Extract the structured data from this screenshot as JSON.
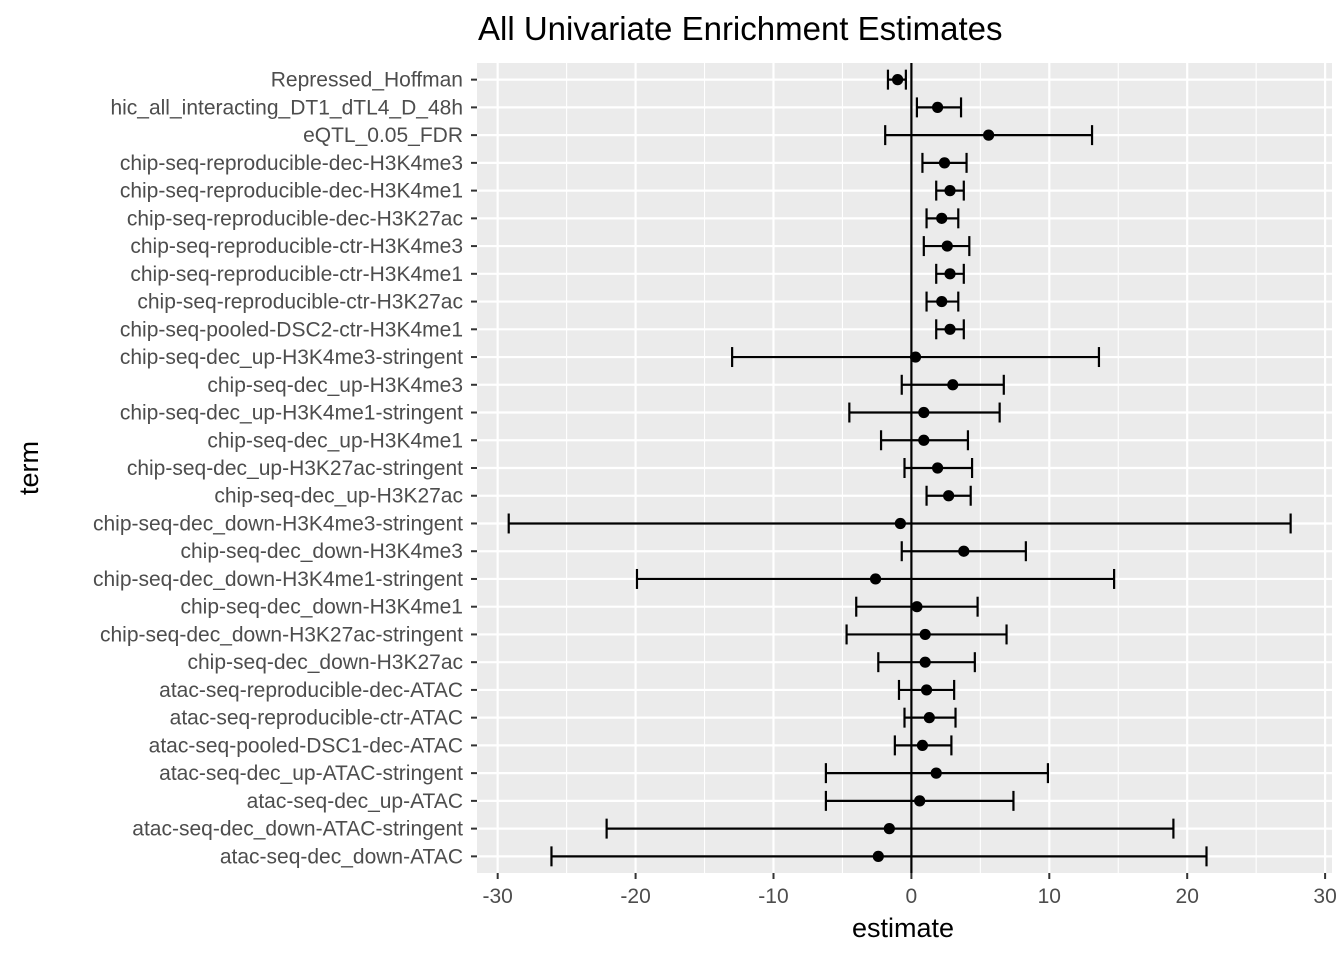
{
  "chart_data": {
    "type": "scatter",
    "subtype": "point-range (estimate with error bars)",
    "title": "All Univariate Enrichment Estimates",
    "xlabel": "estimate",
    "ylabel": "term",
    "xlim": [
      -31.5,
      30.5
    ],
    "xticks": [
      -30,
      -20,
      -10,
      0,
      10,
      20,
      30
    ],
    "xtick_labels": [
      "-30",
      "-20",
      "-10",
      "0",
      "10",
      "20",
      "30"
    ],
    "reference_line_x": 0,
    "grid": true,
    "legend": "none",
    "colors": {
      "panel": "#ebebeb",
      "grid": "#ffffff",
      "marks": "#000000",
      "tick_text": "#4d4d4d"
    },
    "terms": [
      {
        "term": "Repressed_Hoffman",
        "estimate": -1.0,
        "low": -1.7,
        "high": -0.4
      },
      {
        "term": "hic_all_interacting_DT1_dTL4_D_48h",
        "estimate": 1.9,
        "low": 0.4,
        "high": 3.6
      },
      {
        "term": "eQTL_0.05_FDR",
        "estimate": 5.6,
        "low": -1.9,
        "high": 13.1
      },
      {
        "term": "chip-seq-reproducible-dec-H3K4me3",
        "estimate": 2.4,
        "low": 0.8,
        "high": 4.0
      },
      {
        "term": "chip-seq-reproducible-dec-H3K4me1",
        "estimate": 2.8,
        "low": 1.8,
        "high": 3.8
      },
      {
        "term": "chip-seq-reproducible-dec-H3K27ac",
        "estimate": 2.2,
        "low": 1.1,
        "high": 3.4
      },
      {
        "term": "chip-seq-reproducible-ctr-H3K4me3",
        "estimate": 2.6,
        "low": 0.9,
        "high": 4.2
      },
      {
        "term": "chip-seq-reproducible-ctr-H3K4me1",
        "estimate": 2.8,
        "low": 1.8,
        "high": 3.8
      },
      {
        "term": "chip-seq-reproducible-ctr-H3K27ac",
        "estimate": 2.2,
        "low": 1.1,
        "high": 3.4
      },
      {
        "term": "chip-seq-pooled-DSC2-ctr-H3K4me1",
        "estimate": 2.8,
        "low": 1.8,
        "high": 3.8
      },
      {
        "term": "chip-seq-dec_up-H3K4me3-stringent",
        "estimate": 0.3,
        "low": -13.0,
        "high": 13.6
      },
      {
        "term": "chip-seq-dec_up-H3K4me3",
        "estimate": 3.0,
        "low": -0.7,
        "high": 6.7
      },
      {
        "term": "chip-seq-dec_up-H3K4me1-stringent",
        "estimate": 0.9,
        "low": -4.5,
        "high": 6.4
      },
      {
        "term": "chip-seq-dec_up-H3K4me1",
        "estimate": 0.9,
        "low": -2.2,
        "high": 4.1
      },
      {
        "term": "chip-seq-dec_up-H3K27ac-stringent",
        "estimate": 1.9,
        "low": -0.5,
        "high": 4.4
      },
      {
        "term": "chip-seq-dec_up-H3K27ac",
        "estimate": 2.7,
        "low": 1.1,
        "high": 4.3
      },
      {
        "term": "chip-seq-dec_down-H3K4me3-stringent",
        "estimate": -0.8,
        "low": -29.2,
        "high": 27.5
      },
      {
        "term": "chip-seq-dec_down-H3K4me3",
        "estimate": 3.8,
        "low": -0.7,
        "high": 8.3
      },
      {
        "term": "chip-seq-dec_down-H3K4me1-stringent",
        "estimate": -2.6,
        "low": -19.9,
        "high": 14.7
      },
      {
        "term": "chip-seq-dec_down-H3K4me1",
        "estimate": 0.4,
        "low": -4.0,
        "high": 4.8
      },
      {
        "term": "chip-seq-dec_down-H3K27ac-stringent",
        "estimate": 1.0,
        "low": -4.7,
        "high": 6.9
      },
      {
        "term": "chip-seq-dec_down-H3K27ac",
        "estimate": 1.0,
        "low": -2.4,
        "high": 4.6
      },
      {
        "term": "atac-seq-reproducible-dec-ATAC",
        "estimate": 1.1,
        "low": -0.9,
        "high": 3.1
      },
      {
        "term": "atac-seq-reproducible-ctr-ATAC",
        "estimate": 1.3,
        "low": -0.5,
        "high": 3.2
      },
      {
        "term": "atac-seq-pooled-DSC1-dec-ATAC",
        "estimate": 0.8,
        "low": -1.2,
        "high": 2.9
      },
      {
        "term": "atac-seq-dec_up-ATAC-stringent",
        "estimate": 1.8,
        "low": -6.2,
        "high": 9.9
      },
      {
        "term": "atac-seq-dec_up-ATAC",
        "estimate": 0.6,
        "low": -6.2,
        "high": 7.4
      },
      {
        "term": "atac-seq-dec_down-ATAC-stringent",
        "estimate": -1.6,
        "low": -22.1,
        "high": 19.0
      },
      {
        "term": "atac-seq-dec_down-ATAC",
        "estimate": -2.4,
        "low": -26.1,
        "high": 21.4
      }
    ]
  }
}
